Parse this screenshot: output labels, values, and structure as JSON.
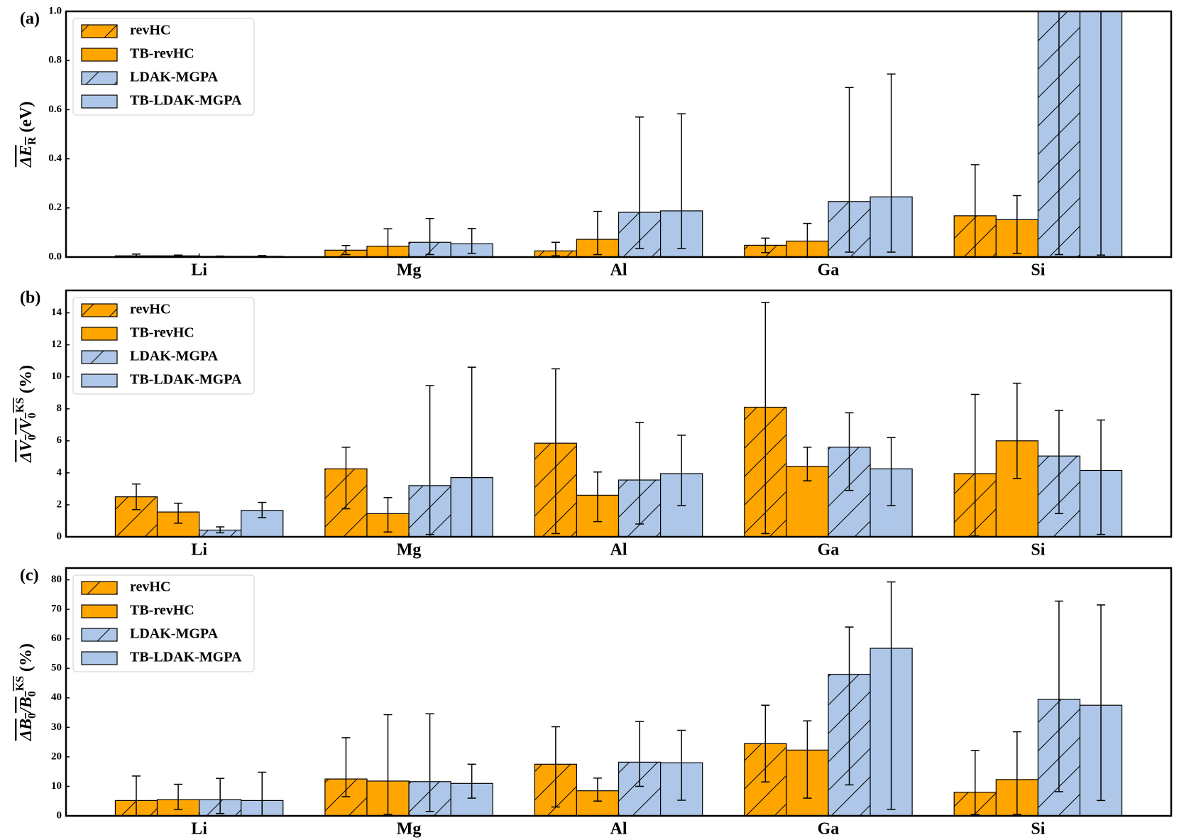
{
  "chart_data": [
    {
      "type": "bar",
      "panel_label": "(a)",
      "ylabel": [
        {
          "text": "ΔE",
          "overline": true
        },
        {
          "text": "R",
          "shift": "sub",
          "overline": true
        },
        {
          "text": " (eV)"
        }
      ],
      "categories": [
        "Li",
        "Mg",
        "Al",
        "Ga",
        "Si"
      ],
      "ylim": [
        0,
        1
      ],
      "yticks": [
        {
          "value": 0,
          "label": "0.0"
        },
        {
          "value": 0.2,
          "label": "0.2"
        },
        {
          "value": 0.4,
          "label": "0.4"
        },
        {
          "value": 0.6,
          "label": "0.6"
        },
        {
          "value": 0.8,
          "label": "0.8"
        },
        {
          "value": 1,
          "label": "1.0"
        }
      ],
      "legend": "upper left",
      "series": [
        {
          "name": "revHC",
          "color": "#ffa500",
          "hatch": true,
          "values": [
            0.005,
            0.028,
            0.025,
            0.048,
            0.168
          ],
          "err_low": [
            0.0,
            0.01,
            0.005,
            0.018,
            0.0
          ],
          "err_high": [
            0.012,
            0.047,
            0.06,
            0.077,
            0.376
          ]
        },
        {
          "name": "TB-revHC",
          "color": "#ffa500",
          "hatch": false,
          "values": [
            0.005,
            0.044,
            0.072,
            0.065,
            0.152
          ],
          "err_low": [
            0.002,
            0.0,
            0.01,
            0.0,
            0.015
          ],
          "err_high": [
            0.008,
            0.115,
            0.186,
            0.137,
            0.25
          ]
        },
        {
          "name": "LDAK-MGPA",
          "color": "#aec7e8",
          "hatch": true,
          "values": [
            0.003,
            0.06,
            0.182,
            0.226,
            1.0
          ],
          "err_low": [
            0.001,
            0.01,
            0.035,
            0.02,
            0.01
          ],
          "err_high": [
            0.004,
            0.157,
            0.57,
            0.69,
            1.0
          ]
        },
        {
          "name": "TB-LDAK-MGPA",
          "color": "#aec7e8",
          "hatch": false,
          "values": [
            0.003,
            0.054,
            0.188,
            0.245,
            1.0
          ],
          "err_low": [
            0.0,
            0.015,
            0.035,
            0.02,
            0.008
          ],
          "err_high": [
            0.006,
            0.116,
            0.583,
            0.745,
            1.0
          ]
        }
      ]
    },
    {
      "type": "bar",
      "panel_label": "(b)",
      "ylabel": [
        {
          "text": "ΔV",
          "overline": true
        },
        {
          "text": "0",
          "shift": "sub",
          "overline": true
        },
        {
          "text": "/V",
          "overline": true
        },
        {
          "text": "0",
          "shift": "sub",
          "overline": true
        },
        {
          "text": "KS",
          "shift": "super",
          "overline": true
        },
        {
          "text": " (%)"
        }
      ],
      "categories": [
        "Li",
        "Mg",
        "Al",
        "Ga",
        "Si"
      ],
      "ylim": [
        0,
        15.4
      ],
      "yticks": [
        0,
        2,
        4,
        6,
        8,
        10,
        12,
        14
      ],
      "legend": "upper left",
      "series": [
        {
          "name": "revHC",
          "color": "#ffa500",
          "hatch": true,
          "values": [
            2.5,
            4.25,
            5.85,
            8.1,
            3.95
          ],
          "err_low": [
            1.7,
            1.75,
            0.2,
            0.2,
            0.05
          ],
          "err_high": [
            3.3,
            5.6,
            10.5,
            14.65,
            8.9
          ]
        },
        {
          "name": "TB-revHC",
          "color": "#ffa500",
          "hatch": false,
          "values": [
            1.55,
            1.45,
            2.6,
            4.4,
            6.0
          ],
          "err_low": [
            0.85,
            0.3,
            0.95,
            3.5,
            3.65
          ],
          "err_high": [
            2.1,
            2.45,
            4.05,
            5.6,
            9.6
          ]
        },
        {
          "name": "LDAK-MGPA",
          "color": "#aec7e8",
          "hatch": true,
          "values": [
            0.42,
            3.2,
            3.55,
            5.6,
            5.05
          ],
          "err_low": [
            0.25,
            0.15,
            0.8,
            2.9,
            1.45
          ],
          "err_high": [
            0.62,
            9.45,
            7.15,
            7.75,
            7.9
          ]
        },
        {
          "name": "TB-LDAK-MGPA",
          "color": "#aec7e8",
          "hatch": false,
          "values": [
            1.65,
            3.7,
            3.95,
            4.25,
            4.15
          ],
          "err_low": [
            1.2,
            0.0,
            1.95,
            1.95,
            0.15
          ],
          "err_high": [
            2.15,
            10.6,
            6.35,
            6.2,
            7.3
          ]
        }
      ]
    },
    {
      "type": "bar",
      "panel_label": "(c)",
      "ylabel": [
        {
          "text": "ΔB",
          "overline": true
        },
        {
          "text": "0",
          "shift": "sub",
          "overline": true
        },
        {
          "text": "/B",
          "overline": true
        },
        {
          "text": "0",
          "shift": "sub",
          "overline": true
        },
        {
          "text": "KS",
          "shift": "super",
          "overline": true
        },
        {
          "text": " (%)"
        }
      ],
      "categories": [
        "Li",
        "Mg",
        "Al",
        "Ga",
        "Si"
      ],
      "ylim": [
        0,
        84
      ],
      "yticks": [
        0,
        10,
        20,
        30,
        40,
        50,
        60,
        70,
        80
      ],
      "legend": "upper left",
      "series": [
        {
          "name": "revHC",
          "color": "#ffa500",
          "hatch": true,
          "values": [
            5.2,
            12.5,
            17.5,
            24.5,
            8
          ],
          "err_low": [
            0,
            6.5,
            3,
            11.5,
            0.5
          ],
          "err_high": [
            13.5,
            26.5,
            30.2,
            37.5,
            22.2
          ]
        },
        {
          "name": "TB-revHC",
          "color": "#ffa500",
          "hatch": false,
          "values": [
            5.5,
            11.8,
            8.5,
            22.3,
            12.3
          ],
          "err_low": [
            2.2,
            0.5,
            5,
            6,
            0.5
          ],
          "err_high": [
            10.7,
            34.3,
            12.8,
            32.2,
            28.5
          ]
        },
        {
          "name": "LDAK-MGPA",
          "color": "#aec7e8",
          "hatch": true,
          "values": [
            5.5,
            11.6,
            18.2,
            48,
            39.5
          ],
          "err_low": [
            0.8,
            1.5,
            10,
            10.5,
            8.2
          ],
          "err_high": [
            12.7,
            34.6,
            32,
            64,
            72.8
          ]
        },
        {
          "name": "TB-LDAK-MGPA",
          "color": "#aec7e8",
          "hatch": false,
          "values": [
            5.2,
            11,
            18,
            56.8,
            37.5
          ],
          "err_low": [
            0,
            6,
            5.3,
            2.2,
            5.2
          ],
          "err_high": [
            14.8,
            17.5,
            29,
            79.3,
            71.5
          ]
        }
      ]
    }
  ]
}
